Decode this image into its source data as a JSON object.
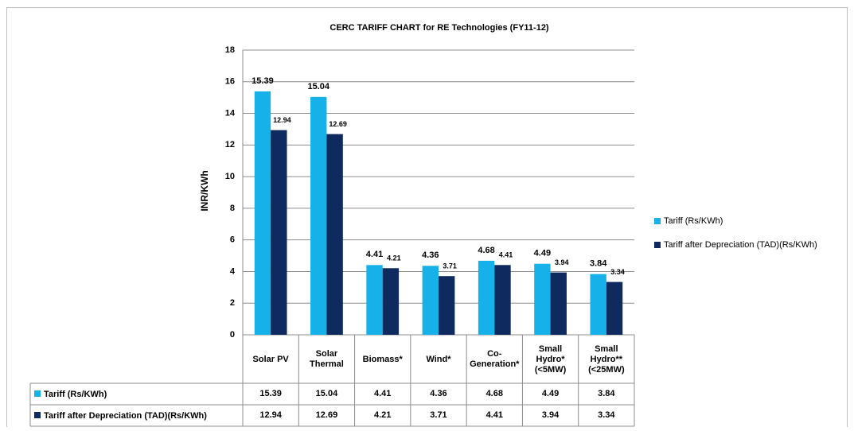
{
  "chart_data": {
    "type": "bar",
    "title": "CERC TARIFF CHART for RE Technologies (FY11-12)",
    "y_label": "INR/KWh",
    "categories": [
      "Solar PV",
      "Solar Thermal",
      "Biomass*",
      "Wind*",
      "Co-Generation*",
      "Small Hydro* (<5MW)",
      "Small Hydro** (<25MW)"
    ],
    "series": [
      {
        "name": "Tariff (Rs/KWh)",
        "color": "#17b1ea",
        "values": [
          15.39,
          15.04,
          4.41,
          4.36,
          4.68,
          4.49,
          3.84
        ]
      },
      {
        "name": "Tariff after Depreciation (TAD)(Rs/KWh)",
        "color": "#0f2a5e",
        "values": [
          12.94,
          12.69,
          4.21,
          3.71,
          4.41,
          3.94,
          3.34
        ]
      }
    ],
    "ylim": [
      0,
      18
    ],
    "yticks": [
      0,
      2,
      4,
      6,
      8,
      10,
      12,
      14,
      16,
      18
    ],
    "grid": true,
    "legend": "right"
  }
}
